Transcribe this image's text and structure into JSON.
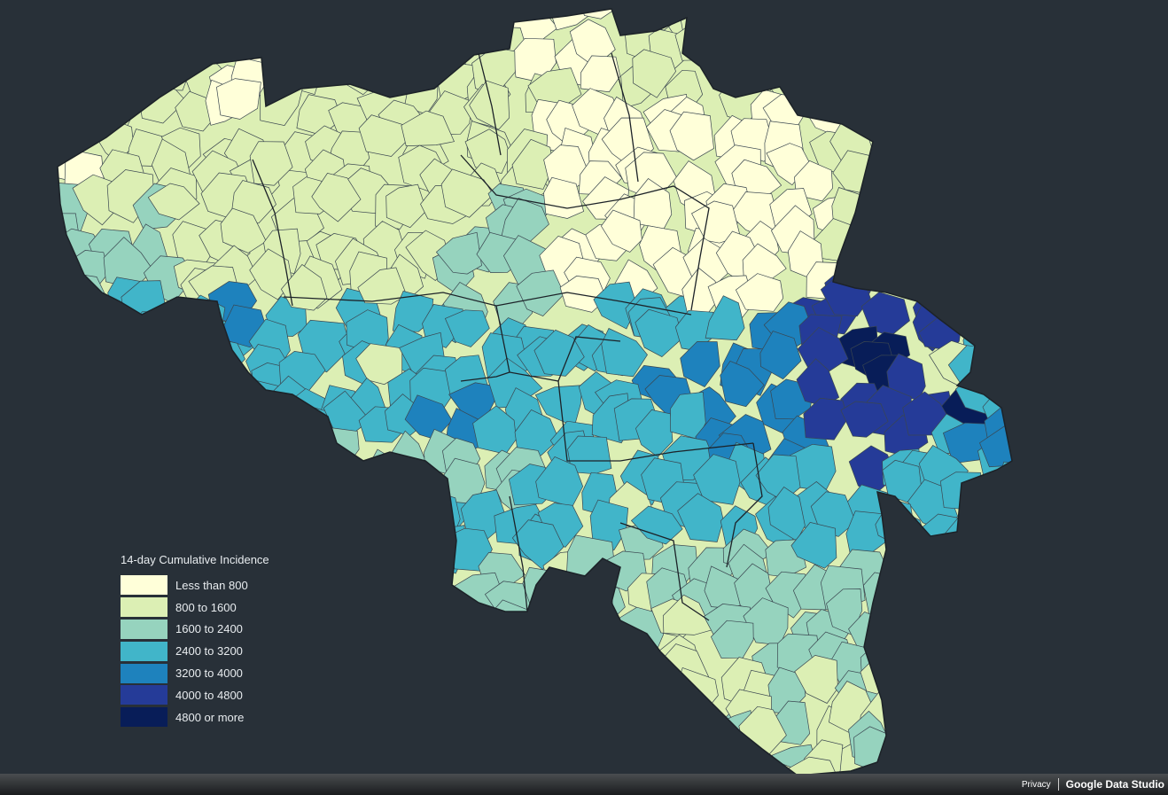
{
  "legend": {
    "title": "14-day Cumulative Incidence",
    "items": [
      {
        "label": "Less than 800",
        "color": "#ffffd9"
      },
      {
        "label": "800 to 1600",
        "color": "#dcefb4"
      },
      {
        "label": "1600 to 2400",
        "color": "#96d3be"
      },
      {
        "label": "2400 to 3200",
        "color": "#41b5c9"
      },
      {
        "label": "3200 to 4000",
        "color": "#1e82bd"
      },
      {
        "label": "4000 to 4800",
        "color": "#253b98"
      },
      {
        "label": "4800 or more",
        "color": "#081d58"
      }
    ]
  },
  "footer": {
    "privacy_label": "Privacy",
    "brand_label": "Google Data Studio"
  }
}
